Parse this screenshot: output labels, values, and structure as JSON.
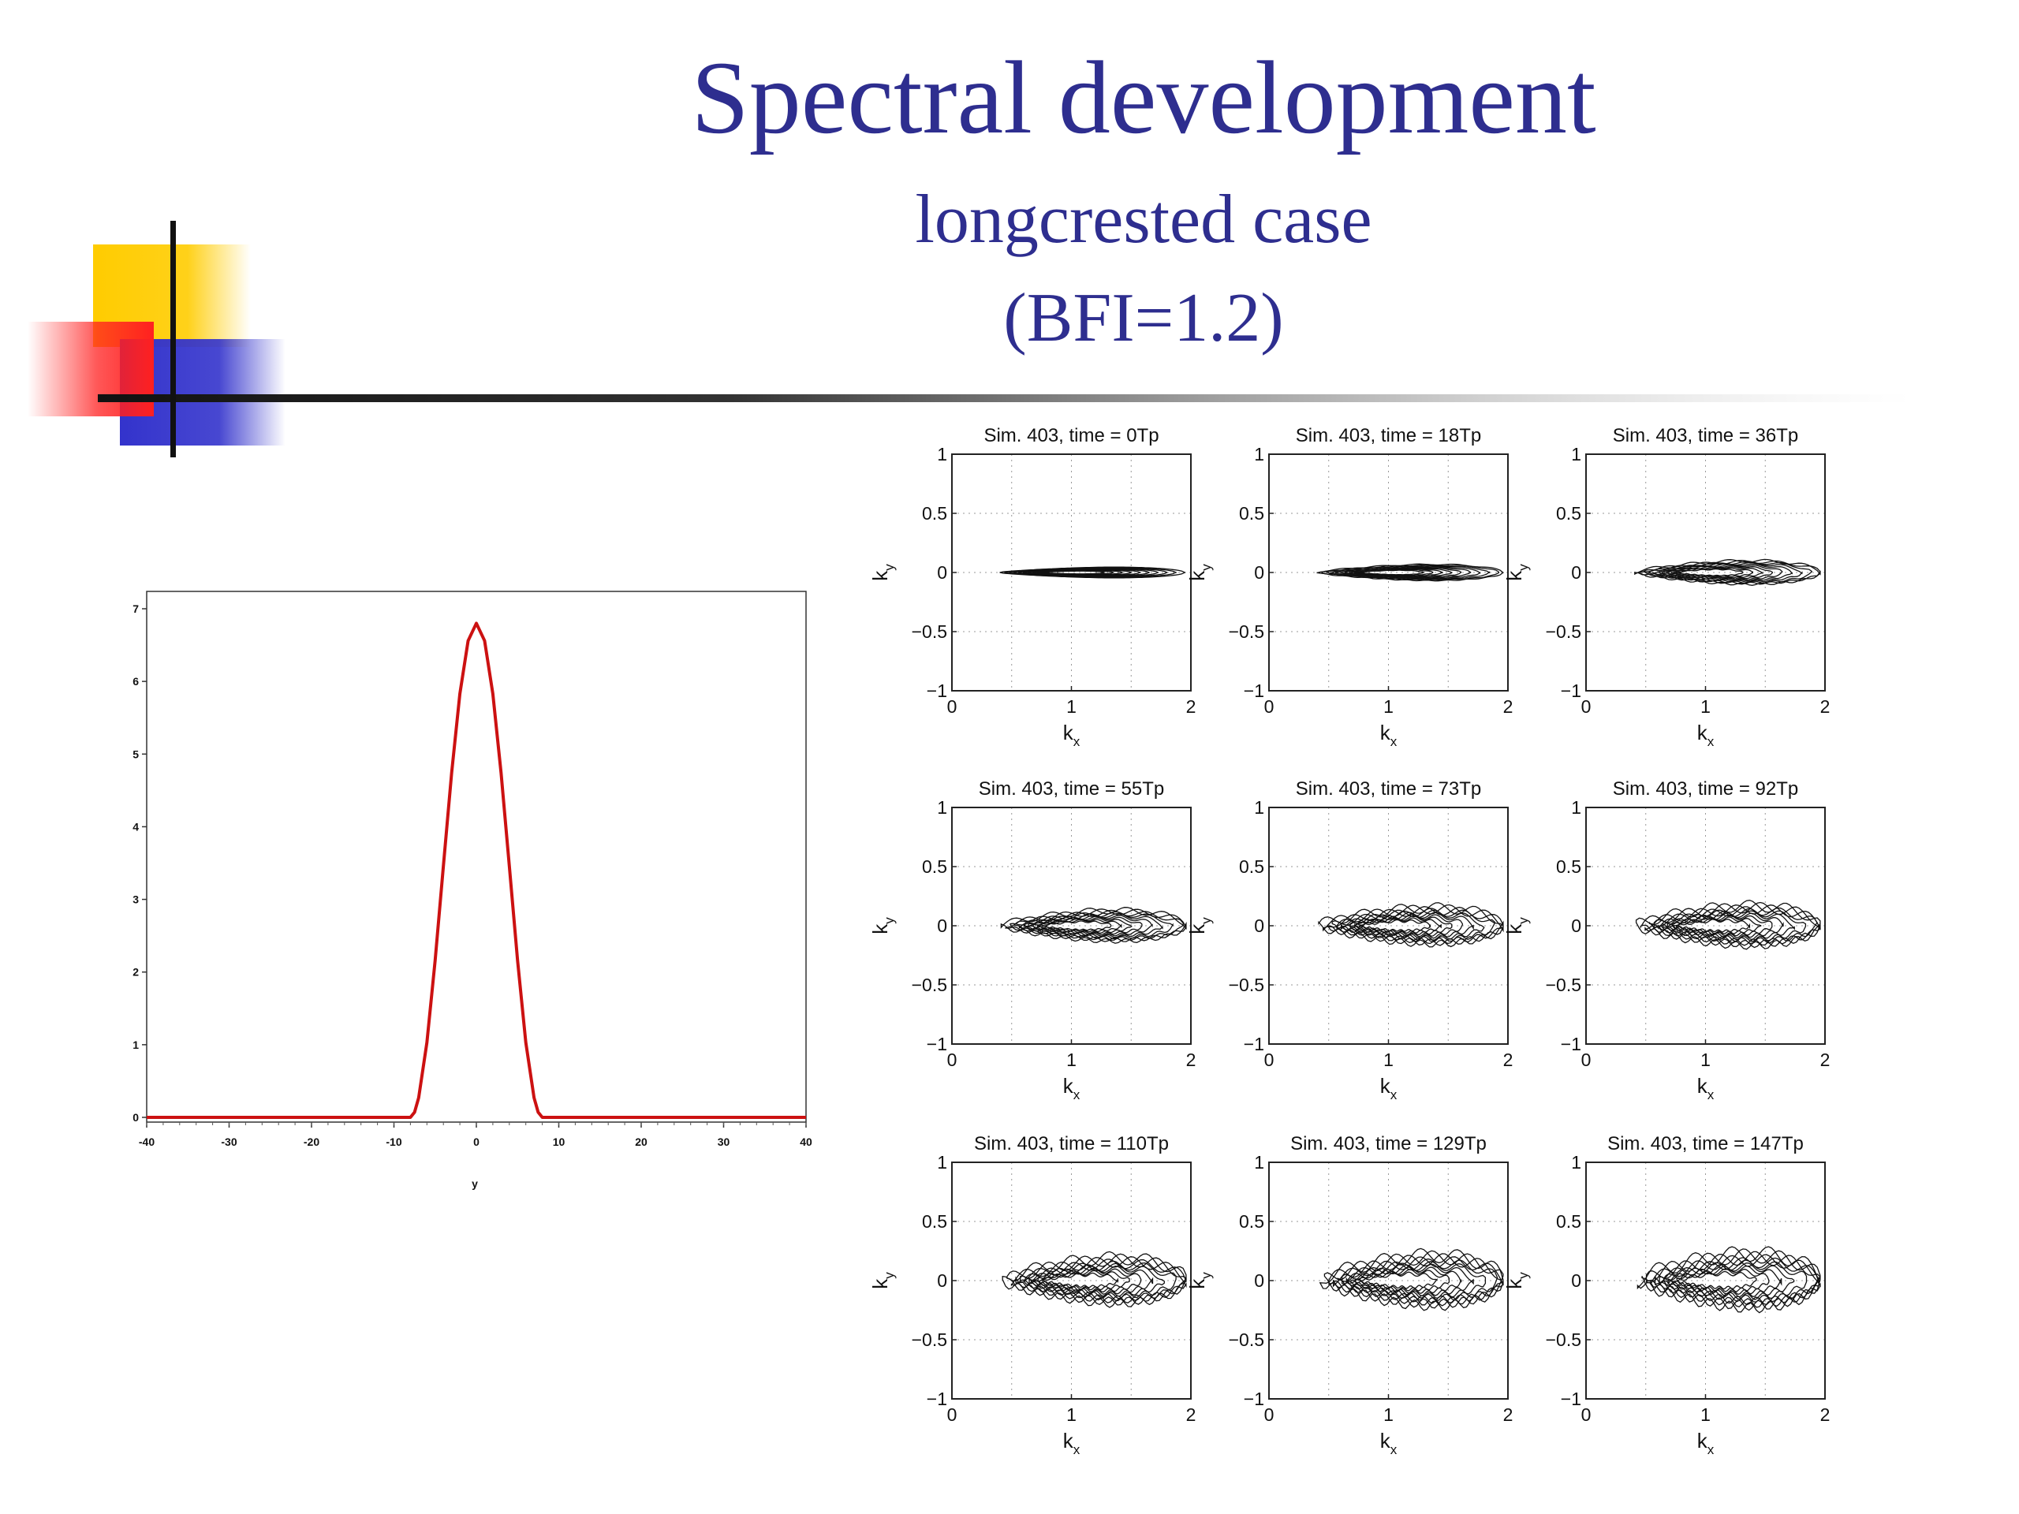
{
  "slide": {
    "title": "Spectral development",
    "subtitle_line1": "longcrested case",
    "subtitle_line2": "(BFI=1.2)",
    "colors": {
      "title": "#2e2e8f",
      "deco_yellow": "#ffcc00",
      "deco_red": "#ff2020",
      "deco_blue": "#3333cc",
      "curve": "#cc1111"
    }
  },
  "chart_data": [
    {
      "type": "line",
      "title": "",
      "xlabel": "y",
      "ylabel": "",
      "xlim": [
        -40,
        40
      ],
      "ylim": [
        0,
        7.2
      ],
      "xticks": [
        "-40",
        "-30",
        "-20",
        "-10",
        "0",
        "10",
        "20",
        "30",
        "40"
      ],
      "yticks": [
        "0",
        "1",
        "2",
        "3",
        "4",
        "5",
        "6",
        "7"
      ],
      "grid": false,
      "series": [
        {
          "color": "#cc1111",
          "x": [
            -40,
            -8,
            -7.5,
            -7,
            -6,
            -5,
            -4,
            -3,
            -2,
            -1,
            0,
            1,
            2,
            3,
            4,
            5,
            6,
            7,
            7.5,
            8,
            40
          ],
          "y": [
            0,
            0,
            0.07,
            0.27,
            1.03,
            2.16,
            3.46,
            4.74,
            5.83,
            6.56,
            6.8,
            6.56,
            5.83,
            4.74,
            3.46,
            2.16,
            1.03,
            0.27,
            0.07,
            0,
            0
          ]
        }
      ]
    },
    {
      "type": "contour",
      "panels": [
        {
          "title": "Sim. 403, time = 0Tp"
        },
        {
          "title": "Sim. 403, time = 18Tp"
        },
        {
          "title": "Sim. 403, time = 36Tp"
        },
        {
          "title": "Sim. 403, time = 55Tp"
        },
        {
          "title": "Sim. 403, time = 73Tp"
        },
        {
          "title": "Sim. 403, time = 92Tp"
        },
        {
          "title": "Sim. 403, time = 110Tp"
        },
        {
          "title": "Sim. 403, time = 129Tp"
        },
        {
          "title": "Sim. 403, time = 147Tp"
        }
      ],
      "xlabel": "k",
      "xlabel_sub": "x",
      "ylabel": "k",
      "ylabel_sub": "y",
      "xlim": [
        0,
        2
      ],
      "ylim": [
        -1,
        1
      ],
      "xticks": [
        "0",
        "1",
        "2"
      ],
      "yticks": [
        "1",
        "0.5",
        "0",
        "−0.5",
        "−1"
      ],
      "grid": true,
      "peak_kx": 0.9,
      "contour_levels_per_panel": 10,
      "spread_ky_per_panel": [
        0.06,
        0.09,
        0.13,
        0.17,
        0.2,
        0.22,
        0.25,
        0.28,
        0.3
      ]
    }
  ]
}
